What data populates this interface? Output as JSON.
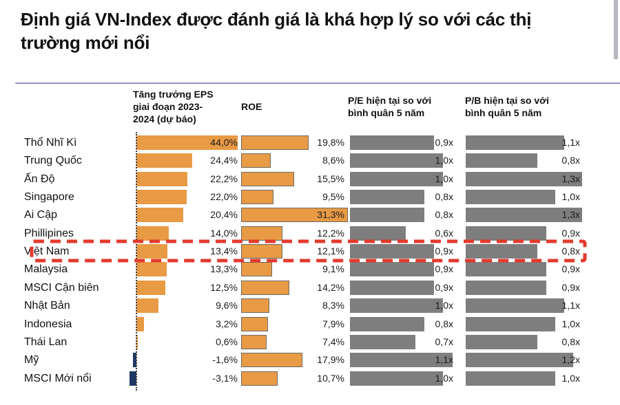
{
  "title": "Định giá VN-Index được đánh giá là khá hợp lý so với các thị\ntrường mới nổi",
  "chart_data": {
    "type": "bar",
    "orientation": "horizontal",
    "grid": false,
    "legend": "none",
    "highlight_row": "Việt Nam",
    "categories": [
      "Thổ Nhĩ Kì",
      "Trung Quốc",
      "Ấn Độ",
      "Singapore",
      "Ai Cập",
      "Phillipines",
      "Việt Nam",
      "Malaysia",
      "MSCI Cận biên",
      "Nhật Bản",
      "Indonesia",
      "Thái Lan",
      "Mỹ",
      "MSCI Mới nổi"
    ],
    "columns": [
      {
        "id": "eps",
        "header": "Tăng trưởng EPS\ngiai đoạn 2023-\n2024 (dự báo)",
        "unit": "%",
        "values": [
          44.0,
          24.4,
          22.2,
          22.0,
          20.4,
          14.0,
          13.4,
          13.3,
          12.5,
          9.6,
          3.2,
          0.6,
          -1.6,
          -3.1
        ],
        "display": [
          "44,0%",
          "24,4%",
          "22,2%",
          "22,0%",
          "20,4%",
          "14,0%",
          "13,4%",
          "13,3%",
          "12,5%",
          "9,6%",
          "3,2%",
          "0,6%",
          "-1,6%",
          "-3,1%"
        ],
        "positive_color": "#E89A44",
        "negative_color": "#1F3864",
        "border_color": ""
      },
      {
        "id": "roe",
        "header": "ROE",
        "unit": "%",
        "values": [
          19.8,
          8.6,
          15.5,
          9.5,
          31.3,
          12.2,
          12.1,
          9.1,
          14.2,
          8.3,
          7.9,
          7.4,
          17.9,
          10.7
        ],
        "display": [
          "19,8%",
          "8,6%",
          "15,5%",
          "9,5%",
          "31,3%",
          "12,2%",
          "12,1%",
          "9,1%",
          "14,2%",
          "8,3%",
          "7,9%",
          "7,4%",
          "17,9%",
          "10,7%"
        ],
        "positive_color": "#E89A44",
        "negative_color": "#1F3864",
        "border_color": "#6A6A6A"
      },
      {
        "id": "pe",
        "header": "P/E hiện tại so với\nbình quân 5 năm",
        "unit": "x",
        "values": [
          0.9,
          1.0,
          1.0,
          0.8,
          0.8,
          0.6,
          0.9,
          0.9,
          0.9,
          1.0,
          0.8,
          0.7,
          1.1,
          1.0
        ],
        "display": [
          "0,9x",
          "1,0x",
          "1,0x",
          "0,8x",
          "0,8x",
          "0,6x",
          "0,9x",
          "0,9x",
          "0,9x",
          "1,0x",
          "0,8x",
          "0,7x",
          "1,1x",
          "1,0x"
        ],
        "positive_color": "#7E7E7E",
        "negative_color": "#7E7E7E",
        "border_color": ""
      },
      {
        "id": "pb",
        "header": "P/B hiện tại so với\nbình quân 5 năm",
        "unit": "x",
        "values": [
          1.1,
          0.8,
          1.3,
          1.0,
          1.3,
          0.9,
          0.8,
          0.9,
          0.9,
          1.1,
          1.0,
          0.8,
          1.2,
          1.0
        ],
        "display": [
          "1,1x",
          "0,8x",
          "1,3x",
          "1,0x",
          "1,3x",
          "0,9x",
          "0,8x",
          "0,9x",
          "0,9x",
          "1,1x",
          "1,0x",
          "0,8x",
          "1,2x",
          "1,0x"
        ],
        "positive_color": "#7E7E7E",
        "negative_color": "#7E7E7E",
        "border_color": ""
      }
    ],
    "colors": {
      "highlight_box": "#E23A2D",
      "separator_line": "#9494C8",
      "zero_axis": "#3A3A3A",
      "orange_bar": "#E89A44",
      "gray_bar": "#7E7E7E",
      "negative_bar": "#1F3864"
    }
  }
}
